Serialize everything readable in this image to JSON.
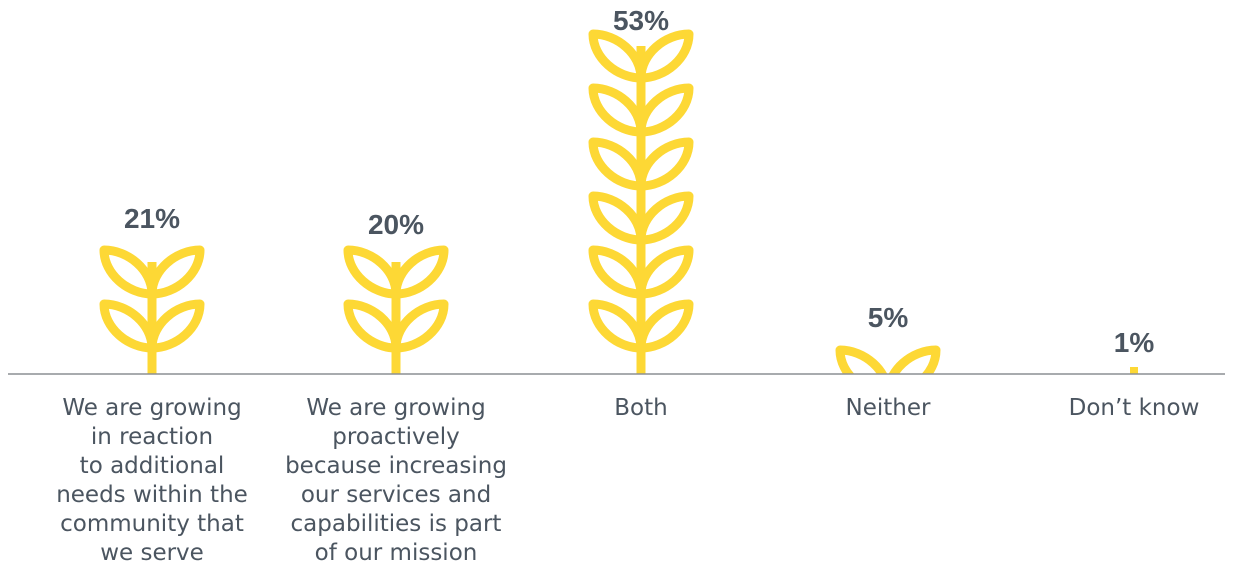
{
  "chart_data": {
    "type": "bar",
    "title": "",
    "xlabel": "",
    "ylabel": "",
    "ylim": [
      0,
      53
    ],
    "grid": false,
    "categories": [
      {
        "label": "We are growing in reaction to additional needs within the community that we serve",
        "lines": [
          "We are growing",
          "in reaction",
          "to additional",
          "needs within the",
          "community that",
          "we serve"
        ]
      },
      {
        "label": "We are growing proactively because increasing our services and capabilities is part of our mission",
        "lines": [
          "We are growing",
          "proactively",
          "because increasing",
          "our services and",
          "capabilities is part",
          "of our mission"
        ]
      },
      {
        "label": "Both",
        "lines": [
          "Both"
        ]
      },
      {
        "label": "Neither",
        "lines": [
          "Neither"
        ]
      },
      {
        "label": "Don’t know",
        "lines": [
          "Don’t know"
        ]
      }
    ],
    "values": [
      21,
      20,
      53,
      5,
      1
    ],
    "value_labels": [
      "21%",
      "20%",
      "53%",
      "5%",
      "1%"
    ]
  },
  "colors": {
    "bar": "#fdd835",
    "value_text": "#4b5560",
    "category_text": "#4b5560",
    "baseline": "#8c8f93"
  },
  "icons": {
    "bar_mark": "wheat-sprout-icon"
  }
}
